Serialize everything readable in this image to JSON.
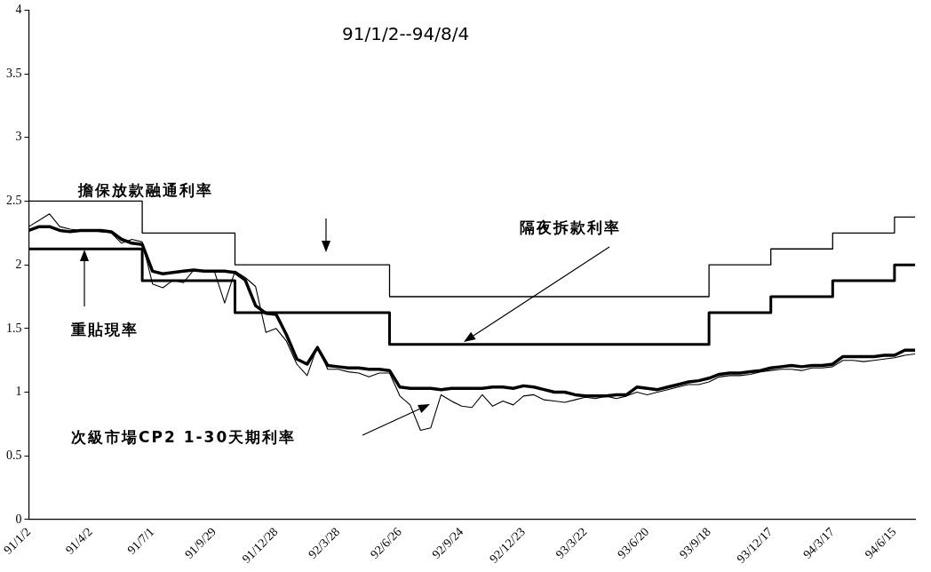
{
  "chart_data": {
    "type": "line",
    "title": "91/1/2--94/8/4",
    "categories": [
      "91/1/2",
      null,
      null,
      null,
      null,
      null,
      "91/4/2",
      null,
      null,
      null,
      null,
      null,
      "91/7/1",
      null,
      null,
      null,
      null,
      null,
      "91/9/29",
      null,
      null,
      null,
      null,
      null,
      "91/12/28",
      null,
      null,
      null,
      null,
      null,
      "92/3/28",
      null,
      null,
      null,
      null,
      null,
      "92/6/26",
      null,
      null,
      null,
      null,
      null,
      "92/9/24",
      null,
      null,
      null,
      null,
      null,
      "92/12/23",
      null,
      null,
      null,
      null,
      null,
      "93/3/22",
      null,
      null,
      null,
      null,
      null,
      "93/6/20",
      null,
      null,
      null,
      null,
      null,
      "93/9/18",
      null,
      null,
      null,
      null,
      null,
      "93/12/17",
      null,
      null,
      null,
      null,
      null,
      "94/3/17",
      null,
      null,
      null,
      null,
      null,
      "94/6/15",
      null,
      null
    ],
    "series": [
      {
        "name": "擔保放款融通利率",
        "type": "step",
        "color": "#000000",
        "values": [
          2.5,
          2.5,
          2.5,
          2.5,
          2.5,
          2.5,
          2.5,
          2.5,
          2.5,
          2.5,
          2.5,
          2.5,
          2.25,
          2.25,
          2.25,
          2.25,
          2.25,
          2.25,
          2.25,
          2.25,
          2.25,
          2.0,
          2.0,
          2.0,
          2.0,
          2.0,
          2.0,
          2.0,
          2.0,
          2.0,
          2.0,
          2.0,
          2.0,
          2.0,
          2.0,
          2.0,
          1.75,
          1.75,
          1.75,
          1.75,
          1.75,
          1.75,
          1.75,
          1.75,
          1.75,
          1.75,
          1.75,
          1.75,
          1.75,
          1.75,
          1.75,
          1.75,
          1.75,
          1.75,
          1.75,
          1.75,
          1.75,
          1.75,
          1.75,
          1.75,
          1.75,
          1.75,
          1.75,
          1.75,
          1.75,
          1.75,
          1.75,
          2.0,
          2.0,
          2.0,
          2.0,
          2.0,
          2.0,
          2.125,
          2.125,
          2.125,
          2.125,
          2.125,
          2.125,
          2.25,
          2.25,
          2.25,
          2.25,
          2.25,
          2.25,
          2.375,
          2.375
        ]
      },
      {
        "name": "重貼現率",
        "type": "step",
        "color": "#000000",
        "values": [
          2.125,
          2.125,
          2.125,
          2.125,
          2.125,
          2.125,
          2.125,
          2.125,
          2.125,
          2.125,
          2.125,
          2.125,
          1.875,
          1.875,
          1.875,
          1.875,
          1.875,
          1.875,
          1.875,
          1.875,
          1.875,
          1.625,
          1.625,
          1.625,
          1.625,
          1.625,
          1.625,
          1.625,
          1.625,
          1.625,
          1.625,
          1.625,
          1.625,
          1.625,
          1.625,
          1.625,
          1.375,
          1.375,
          1.375,
          1.375,
          1.375,
          1.375,
          1.375,
          1.375,
          1.375,
          1.375,
          1.375,
          1.375,
          1.375,
          1.375,
          1.375,
          1.375,
          1.375,
          1.375,
          1.375,
          1.375,
          1.375,
          1.375,
          1.375,
          1.375,
          1.375,
          1.375,
          1.375,
          1.375,
          1.375,
          1.375,
          1.375,
          1.625,
          1.625,
          1.625,
          1.625,
          1.625,
          1.625,
          1.75,
          1.75,
          1.75,
          1.75,
          1.75,
          1.75,
          1.875,
          1.875,
          1.875,
          1.875,
          1.875,
          1.875,
          2.0,
          2.0
        ]
      },
      {
        "color": "#000000",
        "values": [
          2.27,
          2.3,
          2.3,
          2.27,
          2.26,
          2.27,
          2.27,
          2.27,
          2.26,
          2.2,
          2.17,
          2.16,
          1.95,
          1.93,
          1.94,
          1.95,
          1.96,
          1.95,
          1.95,
          1.95,
          1.94,
          1.88,
          1.68,
          1.62,
          1.61,
          1.45,
          1.26,
          1.22,
          1.35,
          1.21,
          1.2,
          1.19,
          1.19,
          1.18,
          1.18,
          1.17,
          1.04,
          1.03,
          1.03,
          1.03,
          1.02,
          1.03,
          1.03,
          1.03,
          1.03,
          1.04,
          1.04,
          1.03,
          1.05,
          1.04,
          1.02,
          1.0,
          1.0,
          0.98,
          0.97,
          0.97,
          0.97,
          0.98,
          0.98,
          1.04,
          1.03,
          1.02,
          1.04,
          1.06,
          1.08,
          1.09,
          1.11,
          1.14,
          1.15,
          1.15,
          1.16,
          1.17,
          1.19,
          1.2,
          1.21,
          1.2,
          1.21,
          1.21,
          1.22,
          1.28,
          1.28,
          1.28,
          1.28,
          1.29,
          1.29,
          1.33,
          1.33
        ]
      },
      {
        "color": "#000000",
        "values": [
          2.3,
          2.35,
          2.4,
          2.3,
          2.28,
          2.27,
          2.27,
          2.26,
          2.25,
          2.17,
          2.2,
          2.18,
          1.85,
          1.82,
          1.88,
          1.86,
          1.96,
          1.95,
          1.95,
          1.7,
          1.95,
          1.9,
          1.83,
          1.47,
          1.5,
          1.4,
          1.22,
          1.13,
          1.36,
          1.18,
          1.18,
          1.16,
          1.15,
          1.12,
          1.15,
          1.15,
          0.97,
          0.9,
          0.7,
          0.72,
          0.98,
          0.93,
          0.89,
          0.88,
          0.98,
          0.89,
          0.93,
          0.9,
          0.97,
          0.98,
          0.94,
          0.93,
          0.92,
          0.94,
          0.96,
          0.95,
          0.97,
          0.95,
          0.97,
          1.0,
          0.98,
          1.0,
          1.02,
          1.04,
          1.06,
          1.06,
          1.08,
          1.12,
          1.13,
          1.13,
          1.14,
          1.16,
          1.17,
          1.18,
          1.18,
          1.17,
          1.19,
          1.19,
          1.2,
          1.25,
          1.25,
          1.24,
          1.25,
          1.26,
          1.27,
          1.29,
          1.3
        ]
      }
    ],
    "annotations": [
      "隔夜拆款利率",
      "次級市場CP2 1-30天期利率"
    ],
    "ylim": [
      0,
      4
    ],
    "yticks": [
      0,
      0.5,
      1,
      1.5,
      2,
      2.5,
      3,
      3.5,
      4
    ],
    "marker": "none",
    "line_style": "solid"
  }
}
